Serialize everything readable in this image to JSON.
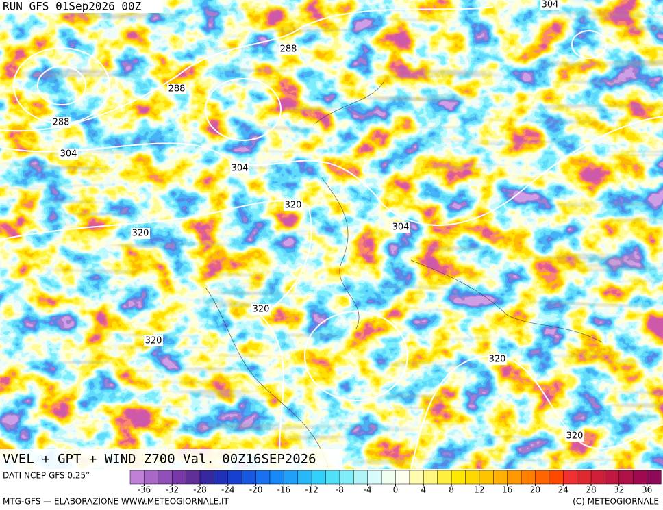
{
  "header": {
    "run": "RUN GFS 01Sep2026 00Z"
  },
  "map": {
    "contour_labels": [
      288,
      288,
      288,
      304,
      304,
      304,
      320,
      304,
      320,
      320,
      320,
      320,
      320
    ],
    "caption": "VVEL + GPT + WIND Z700 Val. 00Z16SEP2026"
  },
  "colorbar": {
    "source": "DATI NCEP GFS 0.25°",
    "range": [
      -38,
      38
    ],
    "ticks": [
      -36,
      -32,
      -28,
      -24,
      -20,
      -16,
      -12,
      -8,
      -4,
      0,
      4,
      8,
      12,
      16,
      20,
      24,
      28,
      32,
      36
    ],
    "colors": [
      "#c080d8",
      "#a868c8",
      "#9050b8",
      "#7838a8",
      "#603098",
      "#3828a0",
      "#2030b8",
      "#1840d0",
      "#1858e0",
      "#1870f0",
      "#1888f8",
      "#20a0f8",
      "#28b8f8",
      "#30d0f8",
      "#50e0f8",
      "#80ecf8",
      "#b0f4f8",
      "#d8fcfc",
      "#f0fff0",
      "#fffff0",
      "#fffcb0",
      "#fff880",
      "#fff040",
      "#ffe800",
      "#ffd800",
      "#ffc400",
      "#ffb000",
      "#ff9800",
      "#ff8000",
      "#ff6400",
      "#ff4800",
      "#f03030",
      "#e02830",
      "#d02038",
      "#c01840",
      "#b01048",
      "#a00850",
      "#900858"
    ]
  },
  "footer": {
    "left": "MTG-GFS — ELABORAZIONE WWW.METEOGIORNALE.IT",
    "right": "(C) METEOGIORNALE"
  }
}
